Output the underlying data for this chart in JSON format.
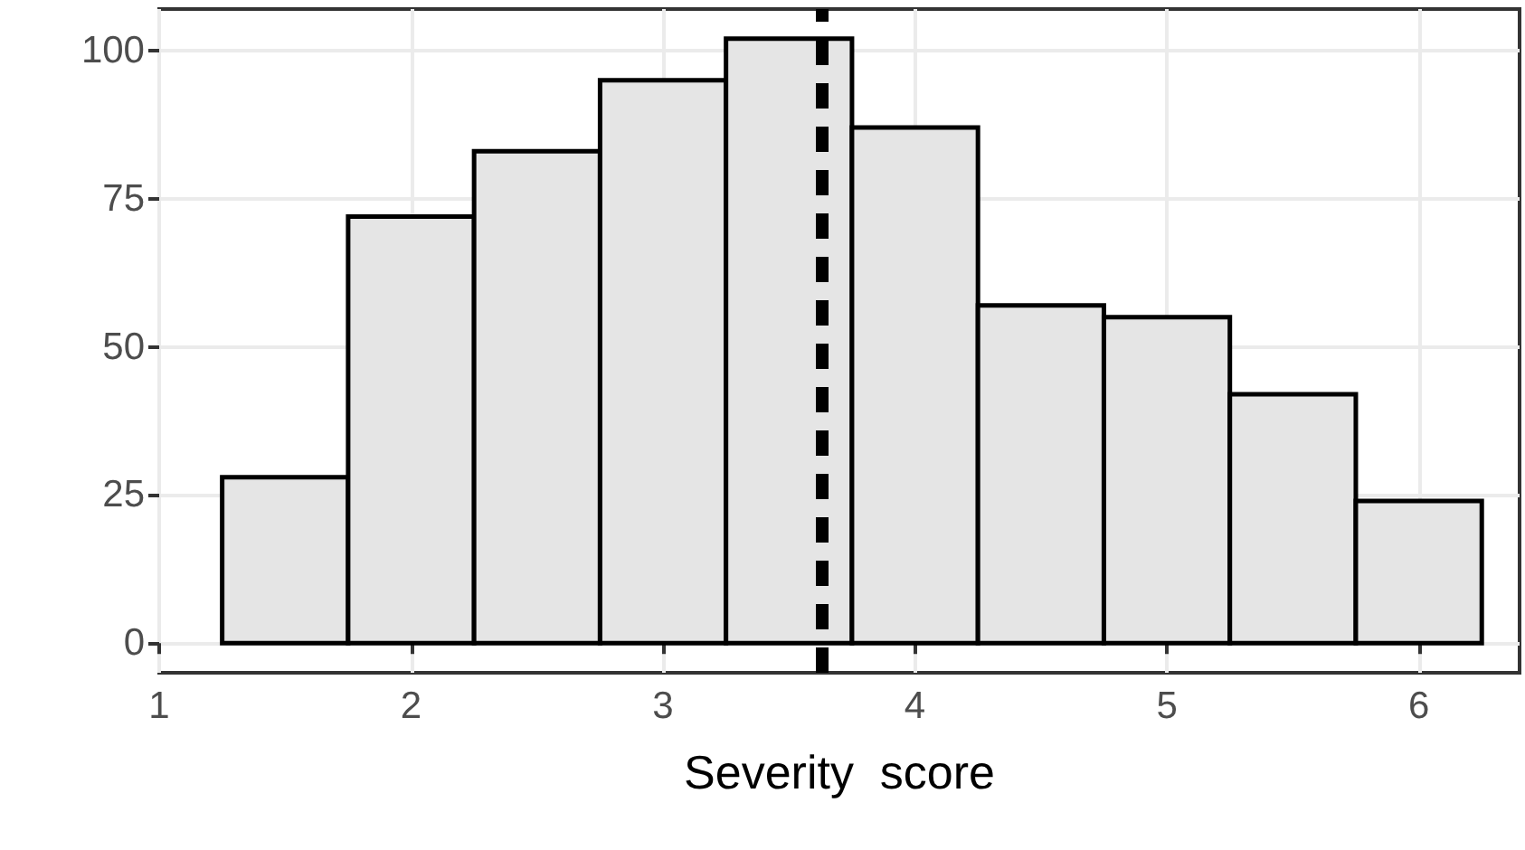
{
  "chart_data": {
    "type": "histogram",
    "xlabel": "Severity  score",
    "bins": [
      1.25,
      1.75,
      2.25,
      2.75,
      3.25,
      3.75,
      4.25,
      4.75,
      5.25,
      5.75,
      6.25
    ],
    "values": [
      28,
      72,
      83,
      95,
      102,
      87,
      57,
      55,
      42,
      24
    ],
    "color": "#e5e5e5",
    "xlim": [
      1,
      6.4
    ],
    "xticks": [
      1,
      2,
      3,
      4,
      5,
      6
    ],
    "ylim": [
      -5,
      107
    ],
    "yticks": [
      0,
      25,
      50,
      75,
      100
    ],
    "grid": true,
    "ref_lines": [
      {
        "axis": "x",
        "value": 3.63,
        "color": "#000000",
        "line_style": "dashed"
      }
    ]
  }
}
